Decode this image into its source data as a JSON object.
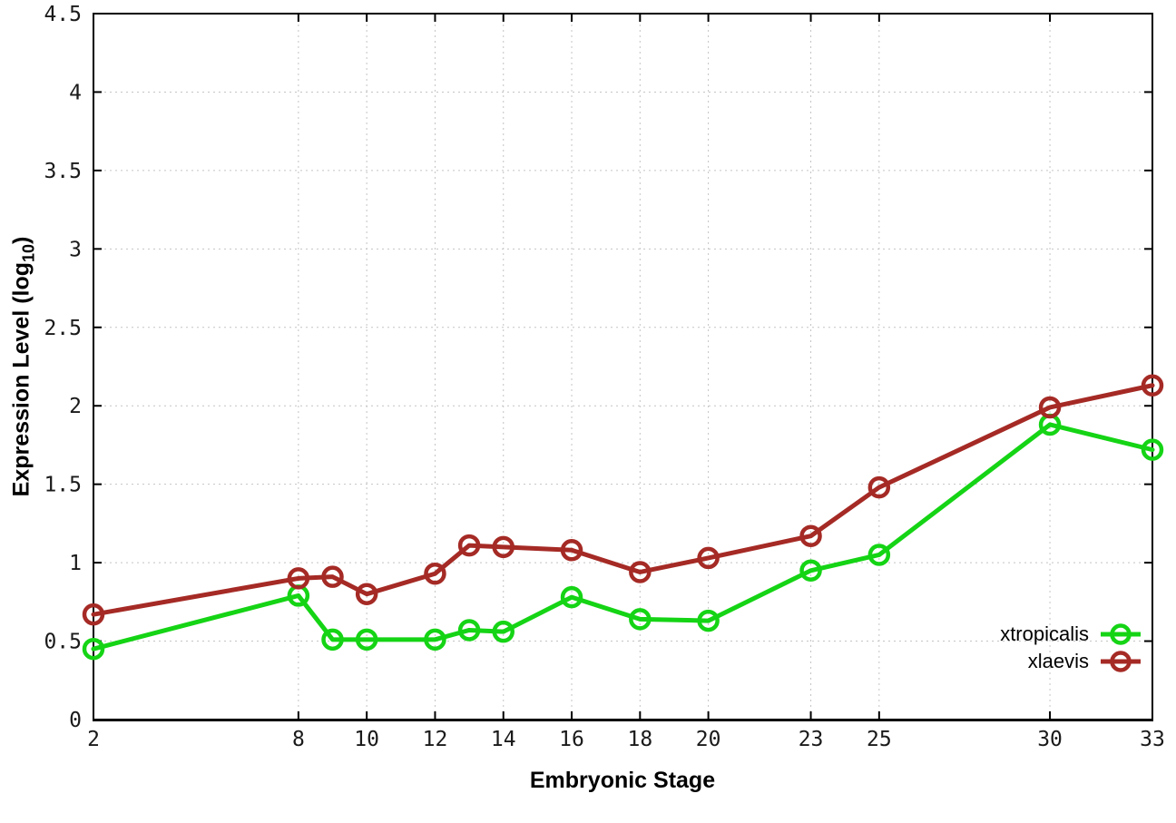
{
  "chart_data": {
    "type": "line",
    "title": "",
    "xlabel": "Embryonic Stage",
    "ylabel": "Expression Level (log10)",
    "ylabel_parts": {
      "main": "Expression Level (log",
      "sub": "10",
      "end": ")"
    },
    "x": [
      2,
      8,
      9,
      10,
      12,
      13,
      14,
      16,
      18,
      20,
      23,
      25,
      30,
      33
    ],
    "x_tick_values": [
      2,
      8,
      10,
      12,
      14,
      16,
      18,
      20,
      23,
      25,
      30,
      33
    ],
    "x_tick_labels": [
      "2",
      "8",
      "10",
      "12",
      "14",
      "16",
      "18",
      "20",
      "23",
      "25",
      "30",
      "33"
    ],
    "y_tick_values": [
      0,
      0.5,
      1,
      1.5,
      2,
      2.5,
      3,
      3.5,
      4,
      4.5
    ],
    "y_tick_labels": [
      "0",
      "0.5",
      "1",
      "1.5",
      "2",
      "2.5",
      "3",
      "3.5",
      "4",
      "4.5"
    ],
    "xlim": [
      2,
      33
    ],
    "ylim": [
      0,
      4.5
    ],
    "grid": true,
    "legend_position": "inside-bottom-right",
    "series": [
      {
        "name": "xtropicalis",
        "color": "#15d415",
        "values": [
          0.45,
          0.79,
          0.51,
          0.51,
          0.51,
          0.57,
          0.56,
          0.78,
          0.64,
          0.63,
          0.95,
          1.05,
          1.88,
          1.72
        ]
      },
      {
        "name": "xlaevis",
        "color": "#a52a25",
        "values": [
          0.67,
          0.9,
          0.91,
          0.8,
          0.93,
          1.11,
          1.1,
          1.08,
          0.94,
          1.03,
          1.17,
          1.48,
          1.99,
          2.13
        ]
      }
    ],
    "style": {
      "grid_color": "#c4c4c4",
      "border_color": "#000000",
      "tick_text_color": "#1a1a1a",
      "line_width": 5,
      "marker_radius": 10,
      "marker_stroke": 4.5
    }
  }
}
